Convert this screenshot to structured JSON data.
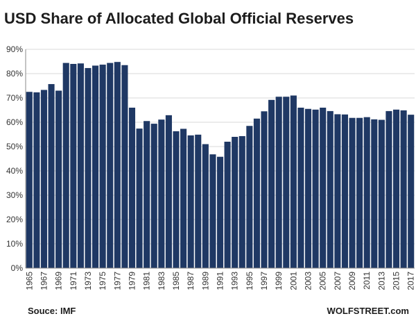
{
  "title": "USD Share of Allocated Global Official Reserves",
  "source": "Souce: IMF",
  "credit": "WOLFSTREET.com",
  "colors": {
    "bar": "#1f3864",
    "grid": "#d9d9d9",
    "axis": "#888888"
  },
  "chart_data": {
    "type": "bar",
    "categories": [
      "1965",
      "1966",
      "1967",
      "1968",
      "1969",
      "1970",
      "1971",
      "1972",
      "1973",
      "1974",
      "1975",
      "1976",
      "1977",
      "1978",
      "1979",
      "1980",
      "1981",
      "1982",
      "1983",
      "1984",
      "1985",
      "1986",
      "1987",
      "1988",
      "1989",
      "1990",
      "1991",
      "1992",
      "1993",
      "1994",
      "1995",
      "1996",
      "1997",
      "1998",
      "1999",
      "2000",
      "2001",
      "2002",
      "2003",
      "2004",
      "2005",
      "2006",
      "2007",
      "2008",
      "2009",
      "2010",
      "2011",
      "2012",
      "2013",
      "2014",
      "2015",
      "2016",
      "2017"
    ],
    "x_tick_labels": [
      "1965",
      "1967",
      "1969",
      "1971",
      "1973",
      "1975",
      "1977",
      "1979",
      "1981",
      "1983",
      "1985",
      "1987",
      "1989",
      "1991",
      "1993",
      "1995",
      "1997",
      "1999",
      "2001",
      "2003",
      "2005",
      "2007",
      "2009",
      "2011",
      "2013",
      "2015",
      "2017"
    ],
    "values": [
      72.5,
      72.3,
      73.3,
      75.7,
      73.0,
      84.4,
      84.0,
      84.2,
      82.3,
      83.3,
      83.7,
      84.4,
      84.8,
      83.5,
      66.0,
      57.4,
      60.5,
      59.4,
      61.1,
      62.9,
      56.3,
      57.3,
      54.6,
      54.9,
      51.0,
      46.8,
      45.8,
      52.0,
      54.0,
      54.3,
      58.5,
      61.5,
      64.5,
      69.2,
      70.5,
      70.5,
      71.0,
      66.0,
      65.5,
      65.2,
      66.0,
      64.6,
      63.3,
      63.2,
      61.8,
      61.8,
      62.1,
      61.2,
      61.0,
      64.6,
      65.2,
      64.9,
      63.1
    ],
    "ylim": [
      0,
      90
    ],
    "y_ticks": [
      0,
      10,
      20,
      30,
      40,
      50,
      60,
      70,
      80,
      90
    ],
    "y_tick_format": "%",
    "grid": true,
    "xlabel": "",
    "ylabel": ""
  }
}
